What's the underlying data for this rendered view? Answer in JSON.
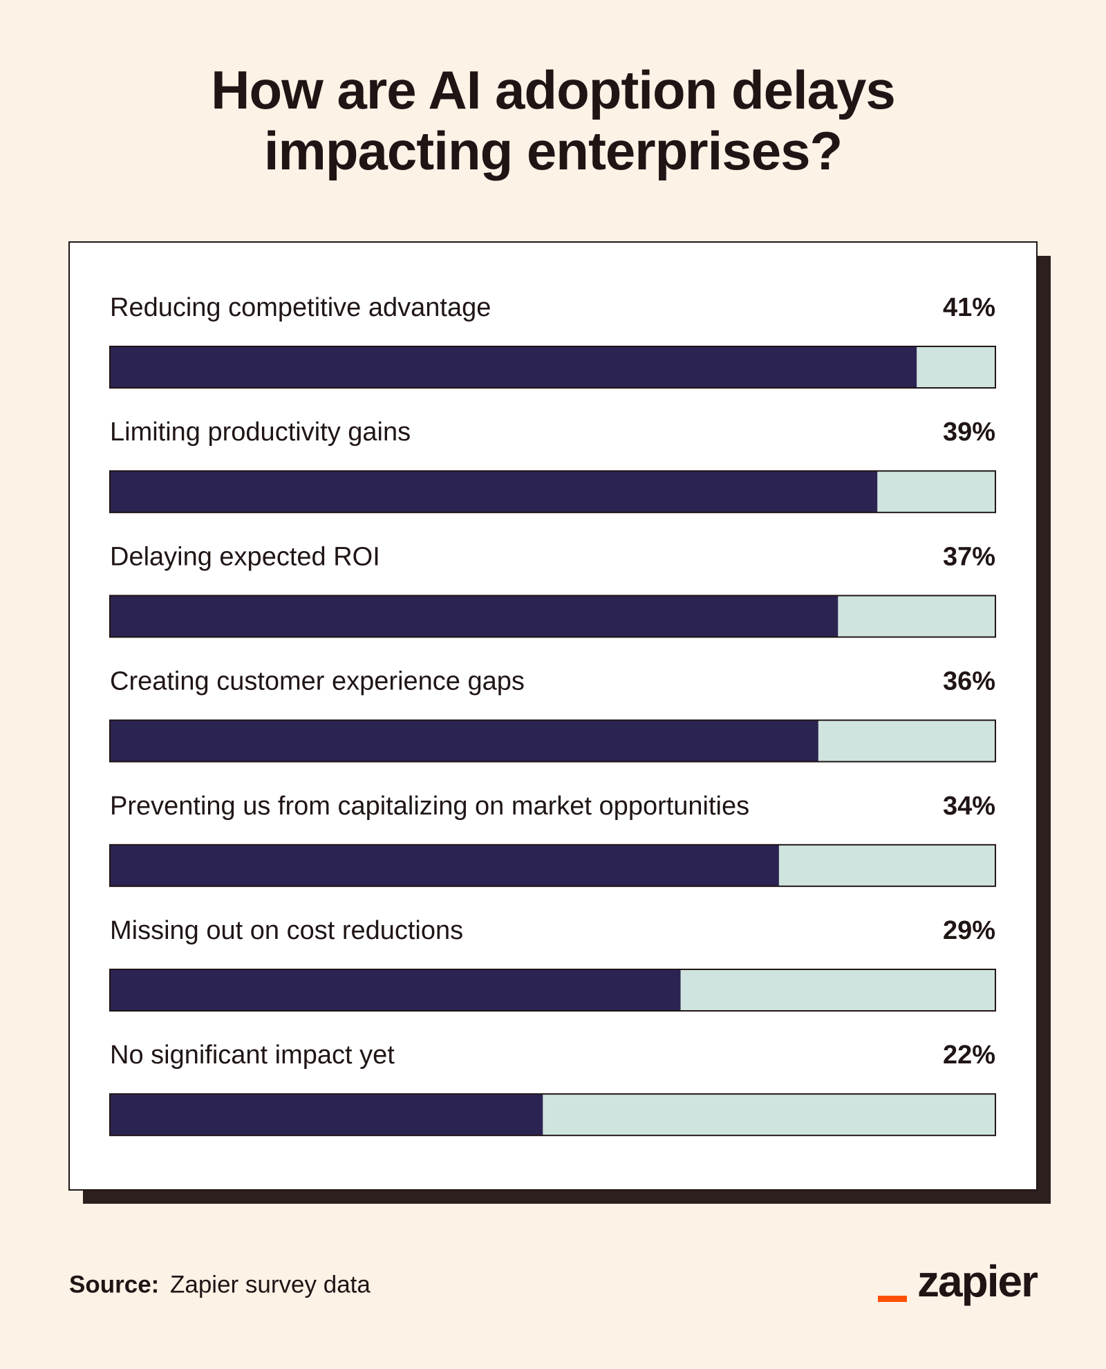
{
  "chart_data": {
    "type": "hbar",
    "title": "How are AI adoption delays impacting enterprises?",
    "categories": [
      "Reducing competitive advantage",
      "Limiting productivity gains",
      "Delaying expected ROI",
      "Creating customer experience gaps",
      "Preventing us from capitalizing on market opportunities",
      "Missing out on cost reductions",
      "No significant impact yet"
    ],
    "values": [
      41,
      39,
      37,
      36,
      34,
      29,
      22
    ],
    "value_labels": [
      "41%",
      "39%",
      "37%",
      "36%",
      "34%",
      "29%",
      "22%"
    ],
    "xlim": [
      0,
      45
    ],
    "color": "#2b2452",
    "track_color": "#cfe4df"
  },
  "source_label": "Source:",
  "source": "Zapier survey data",
  "brand": "zapier"
}
